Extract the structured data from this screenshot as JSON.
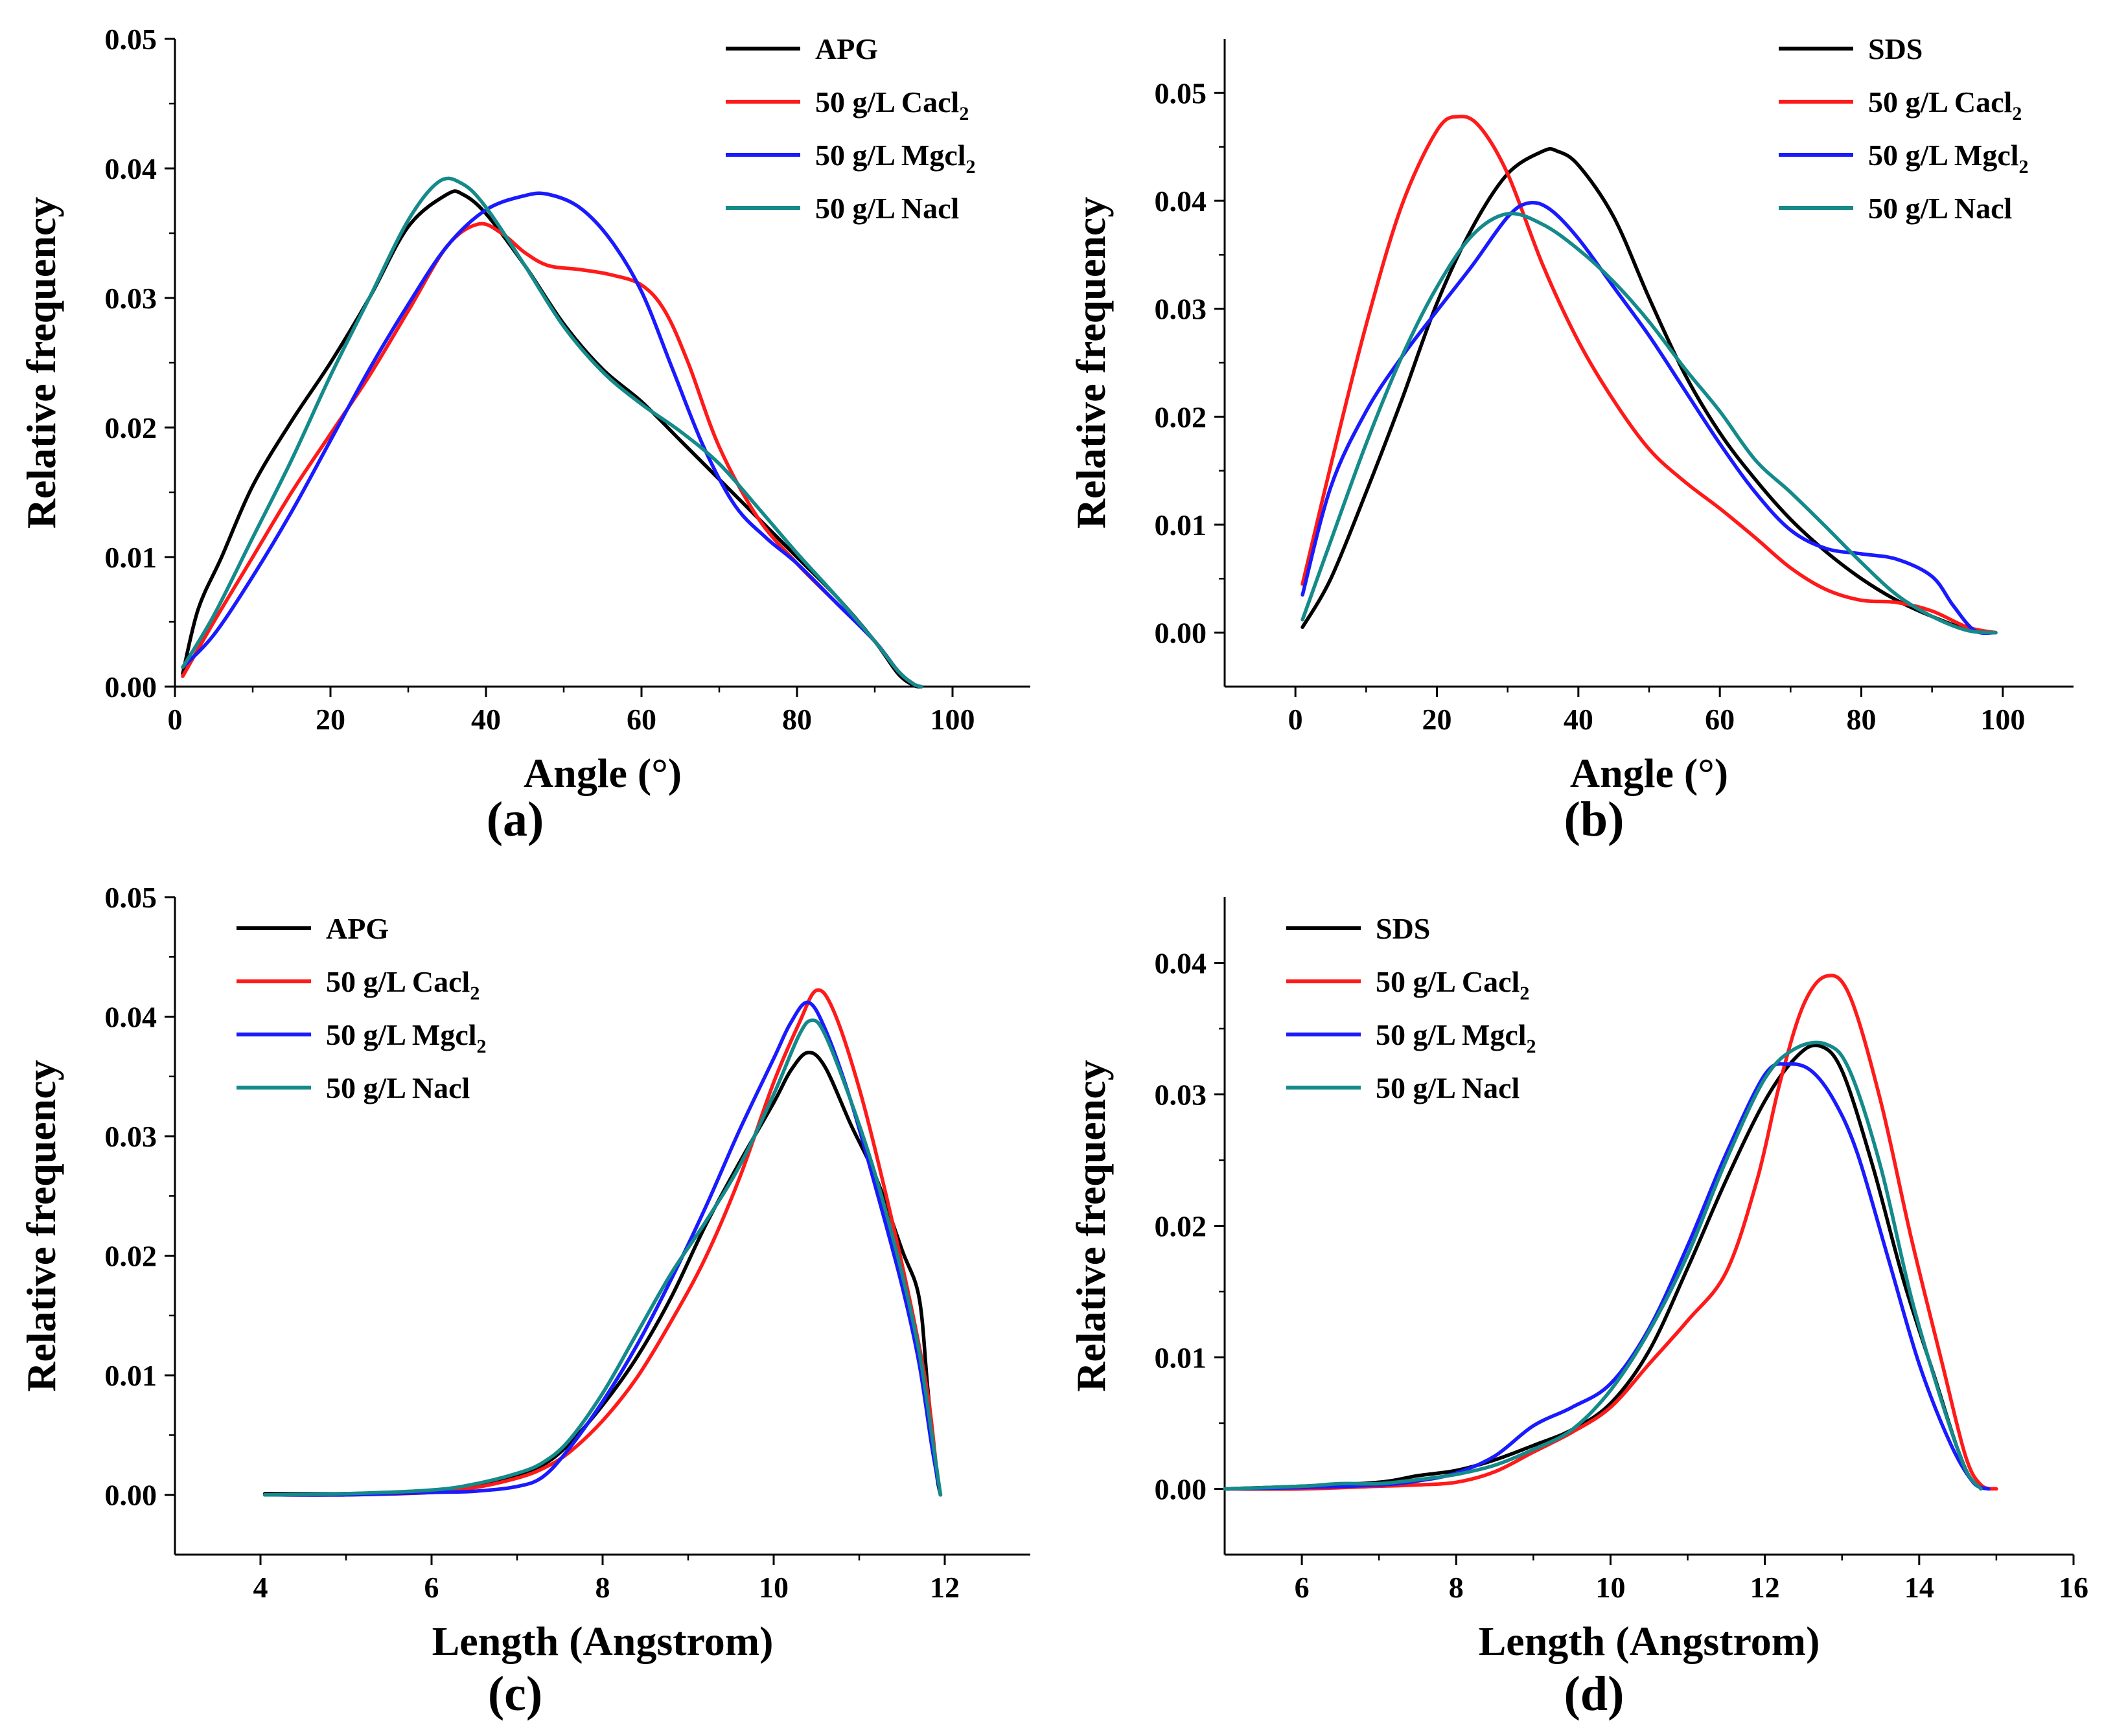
{
  "figure": {
    "panel_labels": [
      "(a)",
      "(b)",
      "(c)",
      "(d)"
    ]
  },
  "chart_data": [
    {
      "type": "line",
      "panel": "(a)",
      "xlabel": "Angle (°)",
      "ylabel": "Relative frequency",
      "xlim": [
        0,
        110
      ],
      "ylim": [
        0,
        0.05
      ],
      "xticks": [
        0,
        20,
        40,
        60,
        80,
        100
      ],
      "xtick_labels": [
        "0",
        "20",
        "40",
        "60",
        "80",
        "100"
      ],
      "yticks": [
        0,
        0.01,
        0.02,
        0.03,
        0.04,
        0.05
      ],
      "ytick_labels": [
        "0.00",
        "0.01",
        "0.02",
        "0.03",
        "0.04",
        "0.05"
      ],
      "legend_position": "top-right",
      "series": [
        {
          "name": "APG",
          "label_main": "APG",
          "label_sub": "",
          "color": "#000000",
          "x": [
            1,
            3,
            6,
            10,
            15,
            20,
            25,
            30,
            35,
            37,
            40,
            45,
            50,
            55,
            60,
            65,
            70,
            75,
            80,
            85,
            90,
            93,
            95,
            96
          ],
          "y": [
            0.001,
            0.006,
            0.01,
            0.0155,
            0.0205,
            0.025,
            0.03,
            0.0355,
            0.038,
            0.038,
            0.0365,
            0.0325,
            0.028,
            0.0245,
            0.022,
            0.019,
            0.016,
            0.013,
            0.01,
            0.007,
            0.0035,
            0.001,
            0.0001,
            0.0
          ]
        },
        {
          "name": "50 g/L Cacl2",
          "label_main": "50 g/L Cacl",
          "label_sub": "2",
          "color": "#ff1a1a",
          "x": [
            1,
            5,
            10,
            15,
            20,
            25,
            30,
            35,
            39,
            42,
            45,
            48,
            52,
            56,
            60,
            63,
            66,
            70,
            75,
            80,
            85,
            90,
            93,
            95,
            96
          ],
          "y": [
            0.0008,
            0.005,
            0.01,
            0.015,
            0.0195,
            0.024,
            0.029,
            0.034,
            0.0357,
            0.035,
            0.0335,
            0.0325,
            0.0322,
            0.0318,
            0.031,
            0.029,
            0.025,
            0.0185,
            0.013,
            0.0095,
            0.0065,
            0.0035,
            0.0012,
            0.0002,
            0.0
          ]
        },
        {
          "name": "50 g/L Mgcl2",
          "label_main": "50 g/L Mgcl",
          "label_sub": "2",
          "color": "#1a1aff",
          "x": [
            1,
            5,
            10,
            15,
            20,
            25,
            30,
            35,
            40,
            45,
            48,
            52,
            56,
            60,
            64,
            68,
            72,
            76,
            80,
            85,
            90,
            93,
            95,
            96
          ],
          "y": [
            0.0015,
            0.004,
            0.0085,
            0.0135,
            0.019,
            0.0245,
            0.0295,
            0.034,
            0.0368,
            0.0379,
            0.038,
            0.037,
            0.0345,
            0.0305,
            0.0245,
            0.0185,
            0.014,
            0.0115,
            0.0095,
            0.0065,
            0.0035,
            0.0012,
            0.0002,
            0.0
          ]
        },
        {
          "name": "50 g/L Nacl",
          "label_main": "50 g/L Nacl",
          "label_sub": "",
          "color": "#158a8a",
          "x": [
            1,
            5,
            10,
            15,
            20,
            25,
            30,
            34,
            37,
            40,
            45,
            50,
            55,
            60,
            65,
            70,
            75,
            80,
            85,
            90,
            93,
            95,
            96
          ],
          "y": [
            0.0015,
            0.0055,
            0.0115,
            0.0175,
            0.024,
            0.03,
            0.036,
            0.039,
            0.0388,
            0.037,
            0.0325,
            0.0278,
            0.0243,
            0.0218,
            0.0197,
            0.0172,
            0.0138,
            0.0103,
            0.007,
            0.0035,
            0.0012,
            0.0002,
            0.0
          ]
        }
      ]
    },
    {
      "type": "line",
      "panel": "(b)",
      "xlabel": "Angle (°)",
      "ylabel": "Relative frequency",
      "xlim": [
        -10,
        110
      ],
      "ylim": [
        -0.005,
        0.055
      ],
      "xticks": [
        0,
        20,
        40,
        60,
        80,
        100
      ],
      "xtick_labels": [
        "0",
        "20",
        "40",
        "60",
        "80",
        "100"
      ],
      "yticks": [
        0,
        0.01,
        0.02,
        0.03,
        0.04,
        0.05
      ],
      "ytick_labels": [
        "0.00",
        "0.01",
        "0.02",
        "0.03",
        "0.04",
        "0.05"
      ],
      "legend_position": "top-right",
      "series": [
        {
          "name": "SDS",
          "label_main": "SDS",
          "label_sub": "",
          "color": "#000000",
          "x": [
            1,
            5,
            10,
            15,
            20,
            25,
            30,
            35,
            37,
            40,
            45,
            50,
            55,
            60,
            65,
            70,
            75,
            80,
            85,
            90,
            95,
            99
          ],
          "y": [
            0.0005,
            0.005,
            0.013,
            0.0215,
            0.0305,
            0.0375,
            0.0425,
            0.0446,
            0.0446,
            0.0433,
            0.0385,
            0.031,
            0.024,
            0.0185,
            0.0142,
            0.0105,
            0.0075,
            0.005,
            0.003,
            0.0015,
            0.0003,
            0.0
          ]
        },
        {
          "name": "50 g/L Cacl2",
          "label_main": "50 g/L Cacl",
          "label_sub": "2",
          "color": "#ff1a1a",
          "x": [
            1,
            5,
            10,
            15,
            20,
            23,
            26,
            30,
            35,
            40,
            45,
            50,
            55,
            60,
            65,
            70,
            75,
            80,
            85,
            90,
            95,
            99
          ],
          "y": [
            0.0045,
            0.0155,
            0.0285,
            0.0395,
            0.0465,
            0.0478,
            0.0469,
            0.0425,
            0.034,
            0.027,
            0.0215,
            0.017,
            0.014,
            0.0115,
            0.0088,
            0.006,
            0.004,
            0.003,
            0.0028,
            0.002,
            0.0005,
            0.0
          ]
        },
        {
          "name": "50 g/L Mgcl2",
          "label_main": "50 g/L Mgcl",
          "label_sub": "2",
          "color": "#1a1aff",
          "x": [
            1,
            5,
            10,
            15,
            20,
            25,
            30,
            33,
            36,
            40,
            45,
            50,
            55,
            60,
            65,
            70,
            75,
            80,
            85,
            90,
            93,
            96,
            99
          ],
          "y": [
            0.0035,
            0.0135,
            0.0205,
            0.0255,
            0.0298,
            0.034,
            0.0385,
            0.0398,
            0.0392,
            0.0365,
            0.032,
            0.0275,
            0.0225,
            0.0175,
            0.013,
            0.0095,
            0.0078,
            0.0073,
            0.0068,
            0.0052,
            0.0025,
            0.0002,
            0.0
          ]
        },
        {
          "name": "50 g/L Nacl",
          "label_main": "50 g/L Nacl",
          "label_sub": "",
          "color": "#158a8a",
          "x": [
            1,
            5,
            10,
            15,
            20,
            25,
            30,
            35,
            40,
            45,
            50,
            55,
            60,
            65,
            70,
            75,
            80,
            85,
            90,
            95,
            99
          ],
          "y": [
            0.0012,
            0.0085,
            0.0175,
            0.0255,
            0.032,
            0.0368,
            0.0388,
            0.0378,
            0.0355,
            0.0325,
            0.0288,
            0.0245,
            0.0205,
            0.016,
            0.013,
            0.0098,
            0.0065,
            0.0035,
            0.0015,
            0.0002,
            0.0
          ]
        }
      ]
    },
    {
      "type": "line",
      "panel": "(c)",
      "xlabel": "Length (Angstrom)",
      "ylabel": "Relative frequency",
      "xlim": [
        3,
        13
      ],
      "ylim": [
        -0.005,
        0.05
      ],
      "xticks": [
        4,
        6,
        8,
        10,
        12
      ],
      "xtick_labels": [
        "4",
        "6",
        "8",
        "10",
        "12"
      ],
      "yticks": [
        0,
        0.01,
        0.02,
        0.03,
        0.04,
        0.05
      ],
      "ytick_labels": [
        "0.00",
        "0.01",
        "0.02",
        "0.03",
        "0.04",
        "0.05"
      ],
      "legend_position": "top-left",
      "series": [
        {
          "name": "APG",
          "label_main": "APG",
          "label_sub": "",
          "color": "#000000",
          "x": [
            4.05,
            5,
            6,
            6.5,
            7,
            7.3,
            7.6,
            8,
            8.4,
            8.8,
            9.2,
            9.6,
            10,
            10.2,
            10.4,
            10.6,
            10.9,
            11.2,
            11.5,
            11.7,
            11.8,
            11.9,
            11.95
          ],
          "y": [
            0.0001,
            0.0001,
            0.0003,
            0.0008,
            0.0017,
            0.0025,
            0.0042,
            0.0075,
            0.0115,
            0.0165,
            0.0225,
            0.0278,
            0.0328,
            0.0355,
            0.037,
            0.0358,
            0.031,
            0.0265,
            0.0205,
            0.0165,
            0.009,
            0.002,
            0.0
          ]
        },
        {
          "name": "50 g/L Cacl2",
          "label_main": "50 g/L Cacl",
          "label_sub": "2",
          "color": "#ff1a1a",
          "x": [
            4.05,
            5,
            6,
            6.5,
            7,
            7.3,
            7.6,
            8,
            8.4,
            8.8,
            9.2,
            9.6,
            10,
            10.3,
            10.5,
            10.7,
            11,
            11.3,
            11.6,
            11.8,
            11.9,
            11.95
          ],
          "y": [
            0.0,
            0.0,
            0.0002,
            0.0006,
            0.0014,
            0.0022,
            0.0035,
            0.0062,
            0.0098,
            0.0145,
            0.0198,
            0.0265,
            0.0345,
            0.0395,
            0.0422,
            0.0405,
            0.034,
            0.0255,
            0.016,
            0.0085,
            0.0025,
            0.0
          ]
        },
        {
          "name": "50 g/L Mgcl2",
          "label_main": "50 g/L Mgcl",
          "label_sub": "2",
          "color": "#1a1aff",
          "x": [
            4.05,
            5,
            6,
            6.5,
            7,
            7.3,
            7.6,
            8,
            8.4,
            8.8,
            9.2,
            9.6,
            10,
            10.2,
            10.4,
            10.6,
            10.9,
            11.2,
            11.5,
            11.7,
            11.85,
            11.95
          ],
          "y": [
            0.0,
            0.0,
            0.0002,
            0.0003,
            0.0007,
            0.0015,
            0.0038,
            0.0078,
            0.0125,
            0.018,
            0.024,
            0.0305,
            0.0365,
            0.0395,
            0.0412,
            0.039,
            0.033,
            0.0255,
            0.0175,
            0.011,
            0.004,
            0.0
          ]
        },
        {
          "name": "50 g/L Nacl",
          "label_main": "50 g/L Nacl",
          "label_sub": "",
          "color": "#158a8a",
          "x": [
            4.05,
            5,
            6,
            6.5,
            7,
            7.3,
            7.6,
            8,
            8.4,
            8.8,
            9.2,
            9.6,
            10,
            10.3,
            10.45,
            10.6,
            10.9,
            11.2,
            11.5,
            11.7,
            11.85,
            11.95
          ],
          "y": [
            0.0,
            0.0001,
            0.0004,
            0.0009,
            0.0018,
            0.0027,
            0.0045,
            0.0085,
            0.0135,
            0.0185,
            0.0228,
            0.0275,
            0.0335,
            0.0385,
            0.0397,
            0.0385,
            0.033,
            0.0265,
            0.0185,
            0.012,
            0.005,
            0.0
          ]
        }
      ]
    },
    {
      "type": "line",
      "panel": "(d)",
      "xlabel": "Length (Angstrom)",
      "ylabel": "Relative frequency",
      "xlim": [
        5,
        16
      ],
      "ylim": [
        -0.005,
        0.045
      ],
      "xticks": [
        6,
        8,
        10,
        12,
        14,
        16
      ],
      "xtick_labels": [
        "6",
        "8",
        "10",
        "12",
        "14",
        "16"
      ],
      "yticks": [
        0,
        0.01,
        0.02,
        0.03,
        0.04
      ],
      "ytick_labels": [
        "0.00",
        "0.01",
        "0.02",
        "0.03",
        "0.04"
      ],
      "legend_position": "top-left",
      "series": [
        {
          "name": "SDS",
          "label_main": "SDS",
          "label_sub": "",
          "color": "#000000",
          "x": [
            5,
            6,
            7,
            7.5,
            8,
            8.5,
            9,
            9.5,
            10,
            10.5,
            11,
            11.5,
            12,
            12.4,
            12.7,
            13,
            13.4,
            13.8,
            14.2,
            14.5,
            14.7,
            14.9
          ],
          "y": [
            0.0,
            0.0002,
            0.0005,
            0.001,
            0.0014,
            0.0022,
            0.0033,
            0.0045,
            0.0065,
            0.0105,
            0.0168,
            0.0235,
            0.0295,
            0.0328,
            0.0337,
            0.0318,
            0.0245,
            0.0158,
            0.0085,
            0.003,
            0.0005,
            0.0
          ]
        },
        {
          "name": "50 g/L Cacl2",
          "label_main": "50 g/L Cacl",
          "label_sub": "2",
          "color": "#ff1a1a",
          "x": [
            5,
            6,
            7,
            7.5,
            8,
            8.5,
            9,
            9.5,
            10,
            10.5,
            11,
            11.5,
            11.9,
            12.2,
            12.5,
            12.8,
            13.1,
            13.5,
            13.9,
            14.3,
            14.6,
            14.8,
            15
          ],
          "y": [
            0.0,
            0.0,
            0.0002,
            0.0003,
            0.0005,
            0.0013,
            0.0028,
            0.0043,
            0.0062,
            0.0095,
            0.0128,
            0.0165,
            0.0235,
            0.031,
            0.0368,
            0.039,
            0.0375,
            0.0295,
            0.019,
            0.0095,
            0.0025,
            0.0003,
            0.0
          ]
        },
        {
          "name": "50 g/L Mgcl2",
          "label_main": "50 g/L Mgcl",
          "label_sub": "2",
          "color": "#1a1aff",
          "x": [
            5,
            6,
            7,
            7.5,
            8,
            8.5,
            9,
            9.5,
            10,
            10.5,
            11,
            11.5,
            12,
            12.3,
            12.6,
            12.9,
            13.2,
            13.6,
            14,
            14.4,
            14.7,
            14.9
          ],
          "y": [
            0.0,
            0.0001,
            0.0003,
            0.0006,
            0.0012,
            0.0025,
            0.0048,
            0.0062,
            0.008,
            0.0122,
            0.0185,
            0.0255,
            0.0315,
            0.0323,
            0.0318,
            0.0295,
            0.0255,
            0.0175,
            0.0095,
            0.0035,
            0.0005,
            0.0
          ]
        },
        {
          "name": "50 g/L Nacl",
          "label_main": "50 g/L Nacl",
          "label_sub": "",
          "color": "#158a8a",
          "x": [
            5,
            6,
            6.5,
            7,
            7.5,
            8,
            8.5,
            9,
            9.5,
            10,
            10.5,
            11,
            11.5,
            12,
            12.4,
            12.8,
            13.1,
            13.5,
            13.9,
            14.3,
            14.6,
            14.8
          ],
          "y": [
            0.0,
            0.0002,
            0.0004,
            0.0004,
            0.0007,
            0.0011,
            0.0018,
            0.003,
            0.0045,
            0.0075,
            0.012,
            0.0178,
            0.025,
            0.0312,
            0.0335,
            0.0338,
            0.0318,
            0.0245,
            0.0145,
            0.0065,
            0.0015,
            0.0
          ]
        }
      ]
    }
  ]
}
